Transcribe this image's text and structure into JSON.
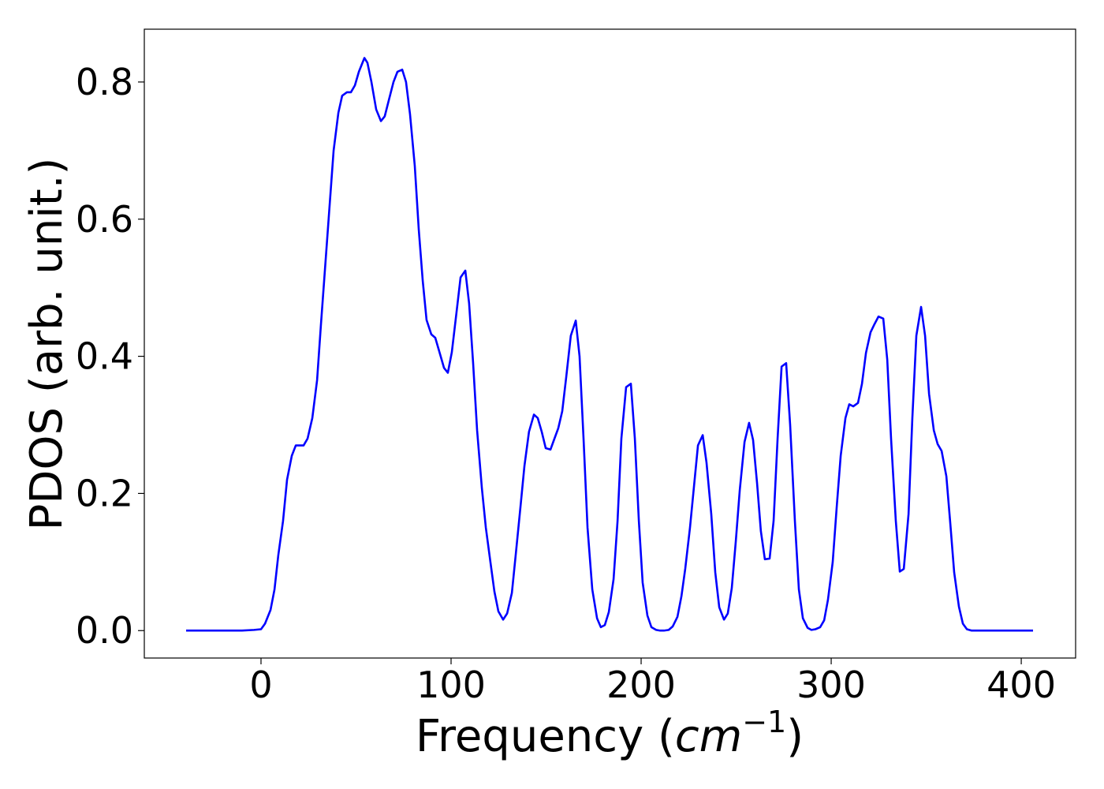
{
  "chart_data": {
    "type": "line",
    "xlabel": {
      "text": "Frequency (",
      "math": "cm",
      "sup": "−1",
      "end": ")"
    },
    "ylabel": "PDOS (arb. unit.)",
    "xlim": [
      -61.4,
      428.6
    ],
    "ylim": [
      -0.04,
      0.877
    ],
    "xticks": [
      0,
      100,
      200,
      300,
      400
    ],
    "yticks": [
      {
        "value": 0,
        "label": "0.0"
      },
      {
        "value": 0.2,
        "label": "0.2"
      },
      {
        "value": 0.4,
        "label": "0.4"
      },
      {
        "value": 0.6,
        "label": "0.6"
      },
      {
        "value": 0.8,
        "label": "0.8"
      }
    ],
    "x": [
      -39.4,
      -10,
      -3.7,
      0,
      2.1,
      5.0,
      7.1,
      9.1,
      11.6,
      13.7,
      16.2,
      18.3,
      20.3,
      22.4,
      24.5,
      27.0,
      29.5,
      31.5,
      34.0,
      36.1,
      38.2,
      40.7,
      42.7,
      45.2,
      47.3,
      49.4,
      51.5,
      54.4,
      56.0,
      58.1,
      60.6,
      63.1,
      65.1,
      67.2,
      69.7,
      71.8,
      74.3,
      76.3,
      78.4,
      80.9,
      83.0,
      85.1,
      87.1,
      89.6,
      91.7,
      93.8,
      96.3,
      98.3,
      100.4,
      102.9,
      105.0,
      107.5,
      109.5,
      111.6,
      113.7,
      116.2,
      118.3,
      120.7,
      122.8,
      124.9,
      127.4,
      129.5,
      132.0,
      134.0,
      136.5,
      138.6,
      141.0,
      143.6,
      145.6,
      147.7,
      149.8,
      152.3,
      154.4,
      156.4,
      158.5,
      160.6,
      163.0,
      165.6,
      167.6,
      169.7,
      171.8,
      174.3,
      176.8,
      178.8,
      180.9,
      183.0,
      185.5,
      187.6,
      189.6,
      192.1,
      194.6,
      196.7,
      198.8,
      200.8,
      203.3,
      205.4,
      207.9,
      210.0,
      212.0,
      214.5,
      216.6,
      219.1,
      221.2,
      223.2,
      225.7,
      227.8,
      229.9,
      232.4,
      234.4,
      236.9,
      239.0,
      241.1,
      243.6,
      245.6,
      247.7,
      249.8,
      251.9,
      254.4,
      256.8,
      258.9,
      261.0,
      263.0,
      265.1,
      267.6,
      269.7,
      271.8,
      273.9,
      276.3,
      278.4,
      280.9,
      283.0,
      285.1,
      287.6,
      289.6,
      291.7,
      294.2,
      296.3,
      298.3,
      300.8,
      302.9,
      305.0,
      307.5,
      309.5,
      311.6,
      314.1,
      316.2,
      318.3,
      320.7,
      322.8,
      324.9,
      327.4,
      329.5,
      331.5,
      334.0,
      336.1,
      338.2,
      340.7,
      342.7,
      344.8,
      347.3,
      349.4,
      351.5,
      354.0,
      356.0,
      358.1,
      360.6,
      362.7,
      364.7,
      367.2,
      369.3,
      371.4,
      373.9,
      406.2
    ],
    "series": [
      {
        "color": "#0000ff",
        "values": [
          0,
          0,
          0.001,
          0.002,
          0.01,
          0.03,
          0.06,
          0.11,
          0.16,
          0.22,
          0.255,
          0.27,
          0.27,
          0.27,
          0.28,
          0.31,
          0.365,
          0.445,
          0.54,
          0.62,
          0.7,
          0.755,
          0.78,
          0.785,
          0.785,
          0.795,
          0.815,
          0.835,
          0.828,
          0.8,
          0.76,
          0.743,
          0.75,
          0.773,
          0.8,
          0.815,
          0.818,
          0.8,
          0.753,
          0.678,
          0.585,
          0.51,
          0.453,
          0.432,
          0.427,
          0.407,
          0.383,
          0.376,
          0.406,
          0.465,
          0.515,
          0.525,
          0.477,
          0.39,
          0.292,
          0.208,
          0.15,
          0.1,
          0.057,
          0.028,
          0.016,
          0.025,
          0.055,
          0.11,
          0.18,
          0.24,
          0.29,
          0.315,
          0.31,
          0.29,
          0.266,
          0.264,
          0.28,
          0.295,
          0.32,
          0.37,
          0.43,
          0.452,
          0.4,
          0.28,
          0.15,
          0.06,
          0.018,
          0.005,
          0.008,
          0.027,
          0.075,
          0.16,
          0.28,
          0.355,
          0.36,
          0.28,
          0.16,
          0.07,
          0.022,
          0.005,
          0.001,
          0,
          0,
          0.001,
          0.006,
          0.02,
          0.05,
          0.09,
          0.15,
          0.21,
          0.27,
          0.285,
          0.245,
          0.17,
          0.085,
          0.034,
          0.016,
          0.025,
          0.062,
          0.13,
          0.205,
          0.275,
          0.303,
          0.278,
          0.215,
          0.145,
          0.104,
          0.105,
          0.16,
          0.28,
          0.385,
          0.39,
          0.3,
          0.16,
          0.06,
          0.018,
          0.004,
          0.001,
          0.002,
          0.005,
          0.015,
          0.045,
          0.1,
          0.18,
          0.255,
          0.31,
          0.33,
          0.327,
          0.332,
          0.36,
          0.405,
          0.435,
          0.447,
          0.458,
          0.455,
          0.395,
          0.28,
          0.16,
          0.086,
          0.09,
          0.17,
          0.31,
          0.43,
          0.472,
          0.43,
          0.345,
          0.292,
          0.272,
          0.262,
          0.225,
          0.155,
          0.085,
          0.035,
          0.01,
          0.002,
          0,
          0
        ]
      }
    ]
  }
}
